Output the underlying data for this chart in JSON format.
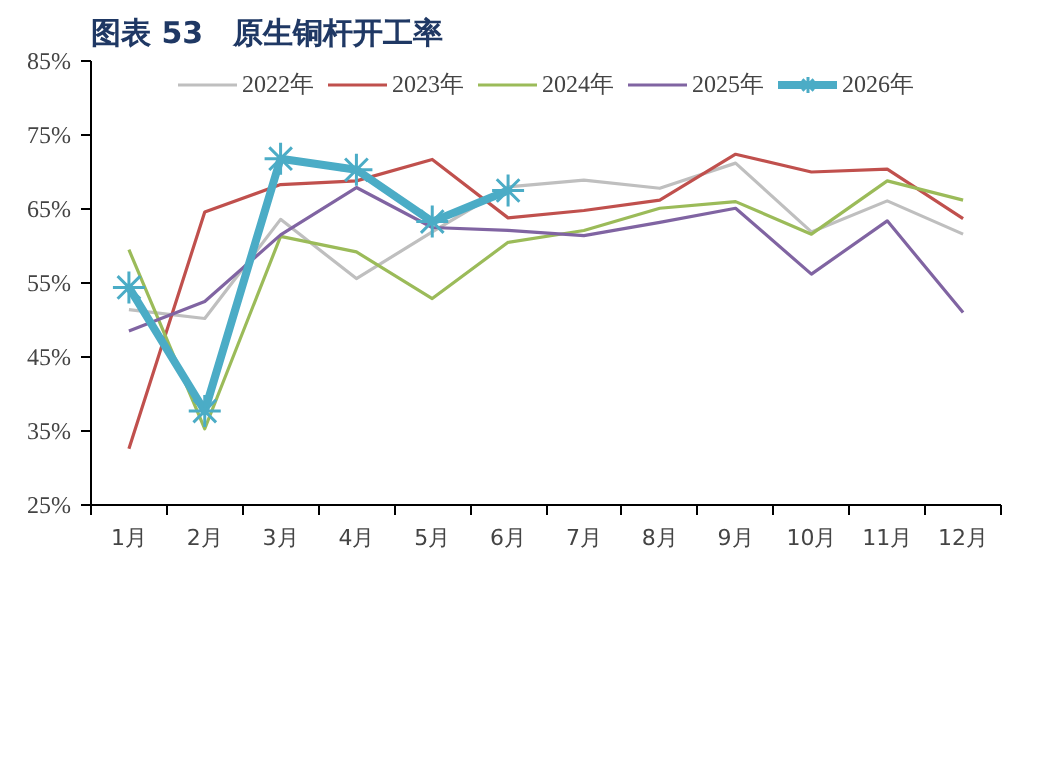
{
  "chart_data": {
    "type": "line",
    "title": "图表 53　原生铜杆开工率",
    "categories": [
      "1月",
      "2月",
      "3月",
      "4月",
      "5月",
      "6月",
      "7月",
      "8月",
      "9月",
      "10月",
      "11月",
      "12月"
    ],
    "series": [
      {
        "name": "2022年",
        "color": "#bfbfbf",
        "values": [
          51.4,
          50.2,
          63.6,
          55.6,
          61.9,
          68.0,
          68.9,
          67.8,
          71.2,
          61.9,
          66.1,
          61.6
        ]
      },
      {
        "name": "2023年",
        "color": "#c0504d",
        "values": [
          32.6,
          64.6,
          68.3,
          68.8,
          71.7,
          63.8,
          64.8,
          66.2,
          72.4,
          70.0,
          70.4,
          63.7
        ]
      },
      {
        "name": "2024年",
        "color": "#9bbb59",
        "values": [
          59.5,
          35.3,
          61.3,
          59.2,
          52.9,
          60.5,
          62.1,
          65.1,
          66.0,
          61.6,
          68.8,
          66.2
        ]
      },
      {
        "name": "2025年",
        "color": "#8064a2",
        "values": [
          48.5,
          52.5,
          61.5,
          67.9,
          62.5,
          62.1,
          61.4,
          63.2,
          65.1,
          56.2,
          63.4,
          51.0
        ]
      },
      {
        "name": "2026年",
        "color": "#4bacc6",
        "marker": "cross",
        "values": [
          54.4,
          37.7,
          71.8,
          70.3,
          63.3,
          67.5,
          null,
          null,
          null,
          null,
          null,
          null
        ]
      }
    ],
    "ylim": [
      25,
      85
    ],
    "yticks": [
      {
        "value": 25,
        "label": "25%"
      },
      {
        "value": 35,
        "label": "35%"
      },
      {
        "value": 45,
        "label": "45%"
      },
      {
        "value": 55,
        "label": "55%"
      },
      {
        "value": 65,
        "label": "65%"
      },
      {
        "value": 75,
        "label": "75%"
      },
      {
        "value": 85,
        "label": "85%"
      }
    ],
    "grid": false,
    "legend": "top",
    "marker": "none",
    "line_style": "solid"
  }
}
